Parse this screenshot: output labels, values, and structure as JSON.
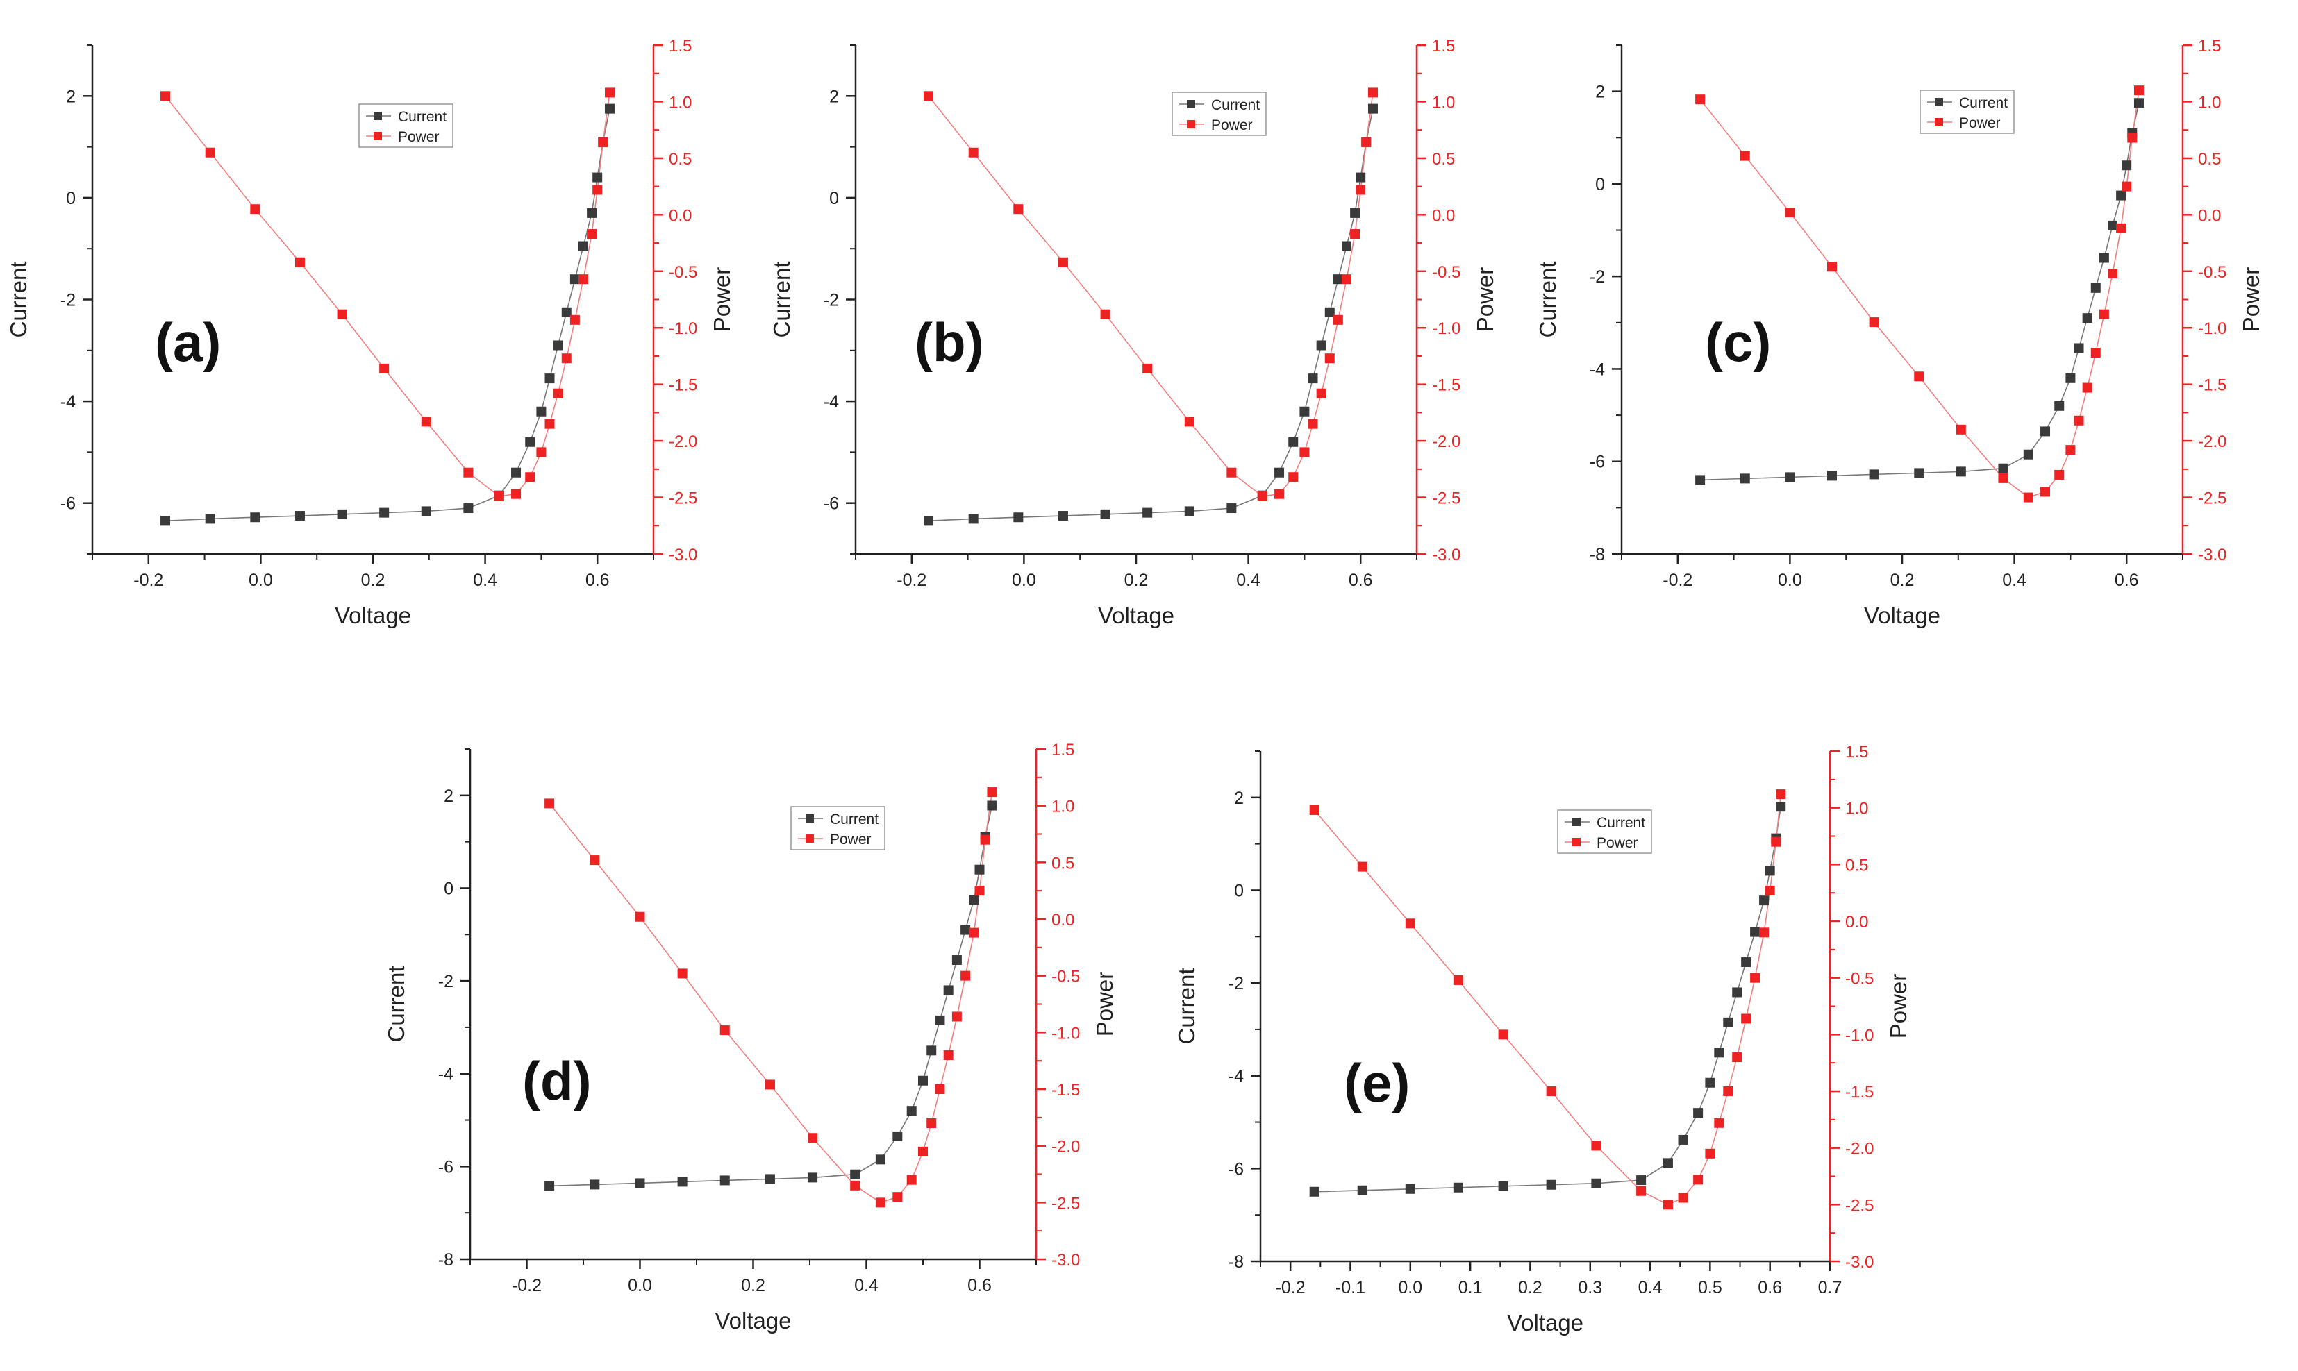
{
  "chart_data": [
    {
      "id": "a",
      "panel_label": "(a)",
      "type": "line",
      "xlabel": "Voltage",
      "ylabel_left": "Current",
      "ylabel_right": "Power",
      "xlim": [
        -0.3,
        0.7
      ],
      "xticks": [
        -0.2,
        0.0,
        0.2,
        0.4,
        0.6
      ],
      "ylim_left": [
        -7,
        3
      ],
      "yticks_left": [
        -6,
        -4,
        -2,
        0,
        2
      ],
      "ylim_right": [
        -3.0,
        1.5
      ],
      "yticks_right": [
        -3.0,
        -2.5,
        -2.0,
        -1.5,
        -1.0,
        -0.5,
        0.0,
        0.5,
        1.0,
        1.5
      ],
      "legend": [
        "Current",
        "Power"
      ],
      "legend_position": "top-right",
      "colors": {
        "current": "#3a3a3a",
        "power": "#ee2222"
      },
      "series": [
        {
          "name": "Current",
          "axis": "left",
          "x": [
            -0.17,
            -0.09,
            -0.01,
            0.07,
            0.145,
            0.22,
            0.295,
            0.37,
            0.425,
            0.455,
            0.48,
            0.5,
            0.515,
            0.53,
            0.545,
            0.56,
            0.575,
            0.59,
            0.6,
            0.61,
            0.622
          ],
          "y": [
            -6.35,
            -6.31,
            -6.28,
            -6.25,
            -6.22,
            -6.19,
            -6.16,
            -6.1,
            -5.85,
            -5.4,
            -4.8,
            -4.2,
            -3.55,
            -2.9,
            -2.25,
            -1.6,
            -0.95,
            -0.3,
            0.4,
            1.1,
            1.75
          ]
        },
        {
          "name": "Power",
          "axis": "right",
          "x": [
            -0.17,
            -0.09,
            -0.01,
            0.07,
            0.145,
            0.22,
            0.295,
            0.37,
            0.425,
            0.455,
            0.48,
            0.5,
            0.515,
            0.53,
            0.545,
            0.56,
            0.575,
            0.59,
            0.6,
            0.61,
            0.622
          ],
          "y": [
            1.05,
            0.55,
            0.05,
            -0.42,
            -0.88,
            -1.36,
            -1.83,
            -2.28,
            -2.49,
            -2.47,
            -2.32,
            -2.1,
            -1.85,
            -1.58,
            -1.27,
            -0.93,
            -0.57,
            -0.17,
            0.22,
            0.64,
            1.08
          ]
        }
      ]
    },
    {
      "id": "b",
      "panel_label": "(b)",
      "type": "line",
      "xlabel": "Voltage",
      "ylabel_left": "Current",
      "ylabel_right": "Power",
      "xlim": [
        -0.3,
        0.7
      ],
      "xticks": [
        -0.2,
        0.0,
        0.2,
        0.4,
        0.6
      ],
      "ylim_left": [
        -7,
        3
      ],
      "yticks_left": [
        -6,
        -4,
        -2,
        0,
        2
      ],
      "ylim_right": [
        -3.0,
        1.5
      ],
      "yticks_right": [
        -3.0,
        -2.5,
        -2.0,
        -1.5,
        -1.0,
        -0.5,
        0.0,
        0.5,
        1.0,
        1.5
      ],
      "legend": [
        "Current",
        "Power"
      ],
      "legend_position": "top-right",
      "colors": {
        "current": "#3a3a3a",
        "power": "#ee2222"
      },
      "series": [
        {
          "name": "Current",
          "axis": "left",
          "x": [
            -0.17,
            -0.09,
            -0.01,
            0.07,
            0.145,
            0.22,
            0.295,
            0.37,
            0.425,
            0.455,
            0.48,
            0.5,
            0.515,
            0.53,
            0.545,
            0.56,
            0.575,
            0.59,
            0.6,
            0.61,
            0.622
          ],
          "y": [
            -6.35,
            -6.31,
            -6.28,
            -6.25,
            -6.22,
            -6.19,
            -6.16,
            -6.1,
            -5.85,
            -5.4,
            -4.8,
            -4.2,
            -3.55,
            -2.9,
            -2.25,
            -1.6,
            -0.95,
            -0.3,
            0.4,
            1.1,
            1.75
          ]
        },
        {
          "name": "Power",
          "axis": "right",
          "x": [
            -0.17,
            -0.09,
            -0.01,
            0.07,
            0.145,
            0.22,
            0.295,
            0.37,
            0.425,
            0.455,
            0.48,
            0.5,
            0.515,
            0.53,
            0.545,
            0.56,
            0.575,
            0.59,
            0.6,
            0.61,
            0.622
          ],
          "y": [
            1.05,
            0.55,
            0.05,
            -0.42,
            -0.88,
            -1.36,
            -1.83,
            -2.28,
            -2.49,
            -2.47,
            -2.32,
            -2.1,
            -1.85,
            -1.58,
            -1.27,
            -0.93,
            -0.57,
            -0.17,
            0.22,
            0.64,
            1.08
          ]
        }
      ]
    },
    {
      "id": "c",
      "panel_label": "(c)",
      "type": "line",
      "xlabel": "Voltage",
      "ylabel_left": "Current",
      "ylabel_right": "Power",
      "xlim": [
        -0.3,
        0.7
      ],
      "xticks": [
        -0.2,
        0.0,
        0.2,
        0.4,
        0.6
      ],
      "ylim_left": [
        -8,
        3
      ],
      "yticks_left": [
        -8,
        -6,
        -4,
        -2,
        0,
        2
      ],
      "ylim_right": [
        -3.0,
        1.5
      ],
      "yticks_right": [
        -3.0,
        -2.5,
        -2.0,
        -1.5,
        -1.0,
        -0.5,
        0.0,
        0.5,
        1.0,
        1.5
      ],
      "legend": [
        "Current",
        "Power"
      ],
      "legend_position": "top-right",
      "colors": {
        "current": "#3a3a3a",
        "power": "#ee2222"
      },
      "series": [
        {
          "name": "Current",
          "axis": "left",
          "x": [
            -0.16,
            -0.08,
            0.0,
            0.075,
            0.15,
            0.23,
            0.305,
            0.38,
            0.425,
            0.455,
            0.48,
            0.5,
            0.515,
            0.53,
            0.545,
            0.56,
            0.575,
            0.59,
            0.6,
            0.61,
            0.622
          ],
          "y": [
            -6.4,
            -6.37,
            -6.34,
            -6.31,
            -6.28,
            -6.25,
            -6.22,
            -6.15,
            -5.85,
            -5.35,
            -4.8,
            -4.2,
            -3.55,
            -2.9,
            -2.25,
            -1.6,
            -0.9,
            -0.25,
            0.4,
            1.1,
            1.75
          ]
        },
        {
          "name": "Power",
          "axis": "right",
          "x": [
            -0.16,
            -0.08,
            0.0,
            0.075,
            0.15,
            0.23,
            0.305,
            0.38,
            0.425,
            0.455,
            0.48,
            0.5,
            0.515,
            0.53,
            0.545,
            0.56,
            0.575,
            0.59,
            0.6,
            0.61,
            0.622
          ],
          "y": [
            1.02,
            0.52,
            0.02,
            -0.46,
            -0.95,
            -1.43,
            -1.9,
            -2.33,
            -2.5,
            -2.45,
            -2.3,
            -2.08,
            -1.82,
            -1.53,
            -1.22,
            -0.88,
            -0.52,
            -0.12,
            0.25,
            0.68,
            1.1
          ]
        }
      ]
    },
    {
      "id": "d",
      "panel_label": "(d)",
      "type": "line",
      "xlabel": "Voltage",
      "ylabel_left": "Current",
      "ylabel_right": "Power",
      "xlim": [
        -0.3,
        0.7
      ],
      "xticks": [
        -0.2,
        0.0,
        0.2,
        0.4,
        0.6
      ],
      "ylim_left": [
        -8,
        3
      ],
      "yticks_left": [
        -8,
        -6,
        -4,
        -2,
        0,
        2
      ],
      "ylim_right": [
        -3.0,
        1.5
      ],
      "yticks_right": [
        -3.0,
        -2.5,
        -2.0,
        -1.5,
        -1.0,
        -0.5,
        0.0,
        0.5,
        1.0,
        1.5
      ],
      "legend": [
        "Current",
        "Power"
      ],
      "legend_position": "top-right",
      "colors": {
        "current": "#3a3a3a",
        "power": "#ee2222"
      },
      "series": [
        {
          "name": "Current",
          "axis": "left",
          "x": [
            -0.16,
            -0.08,
            0.0,
            0.075,
            0.15,
            0.23,
            0.305,
            0.38,
            0.425,
            0.455,
            0.48,
            0.5,
            0.515,
            0.53,
            0.545,
            0.56,
            0.575,
            0.59,
            0.6,
            0.61,
            0.622
          ],
          "y": [
            -6.42,
            -6.39,
            -6.36,
            -6.33,
            -6.3,
            -6.27,
            -6.24,
            -6.17,
            -5.85,
            -5.35,
            -4.8,
            -4.15,
            -3.5,
            -2.85,
            -2.2,
            -1.55,
            -0.9,
            -0.25,
            0.4,
            1.1,
            1.78
          ]
        },
        {
          "name": "Power",
          "axis": "right",
          "x": [
            -0.16,
            -0.08,
            0.0,
            0.075,
            0.15,
            0.23,
            0.305,
            0.38,
            0.425,
            0.455,
            0.48,
            0.5,
            0.515,
            0.53,
            0.545,
            0.56,
            0.575,
            0.59,
            0.6,
            0.61,
            0.622
          ],
          "y": [
            1.02,
            0.52,
            0.02,
            -0.48,
            -0.98,
            -1.46,
            -1.93,
            -2.35,
            -2.5,
            -2.45,
            -2.3,
            -2.05,
            -1.8,
            -1.5,
            -1.2,
            -0.86,
            -0.5,
            -0.12,
            0.25,
            0.7,
            1.12
          ]
        }
      ]
    },
    {
      "id": "e",
      "panel_label": "(e)",
      "type": "line",
      "xlabel": "Voltage",
      "ylabel_left": "Current",
      "ylabel_right": "Power",
      "xlim": [
        -0.25,
        0.7
      ],
      "xticks": [
        -0.2,
        -0.1,
        0.0,
        0.1,
        0.2,
        0.3,
        0.4,
        0.5,
        0.6,
        0.7
      ],
      "ylim_left": [
        -8,
        3
      ],
      "yticks_left": [
        -8,
        -6,
        -4,
        -2,
        0,
        2
      ],
      "ylim_right": [
        -3.0,
        1.5
      ],
      "yticks_right": [
        -3.0,
        -2.5,
        -2.0,
        -1.5,
        -1.0,
        -0.5,
        0.0,
        0.5,
        1.0,
        1.5
      ],
      "legend": [
        "Current",
        "Power"
      ],
      "legend_position": "top-right",
      "colors": {
        "current": "#3a3a3a",
        "power": "#ee2222"
      },
      "series": [
        {
          "name": "Current",
          "axis": "left",
          "x": [
            -0.16,
            -0.08,
            0.0,
            0.08,
            0.155,
            0.235,
            0.31,
            0.385,
            0.43,
            0.455,
            0.48,
            0.5,
            0.515,
            0.53,
            0.545,
            0.56,
            0.575,
            0.59,
            0.6,
            0.61,
            0.618
          ],
          "y": [
            -6.5,
            -6.47,
            -6.44,
            -6.41,
            -6.38,
            -6.35,
            -6.32,
            -6.25,
            -5.88,
            -5.38,
            -4.8,
            -4.15,
            -3.5,
            -2.85,
            -2.2,
            -1.55,
            -0.9,
            -0.22,
            0.42,
            1.12,
            1.8
          ]
        },
        {
          "name": "Power",
          "axis": "right",
          "x": [
            -0.16,
            -0.08,
            0.0,
            0.08,
            0.155,
            0.235,
            0.31,
            0.385,
            0.43,
            0.455,
            0.48,
            0.5,
            0.515,
            0.53,
            0.545,
            0.56,
            0.575,
            0.59,
            0.6,
            0.61,
            0.618
          ],
          "y": [
            0.98,
            0.48,
            -0.02,
            -0.52,
            -1.0,
            -1.5,
            -1.98,
            -2.38,
            -2.5,
            -2.44,
            -2.28,
            -2.05,
            -1.78,
            -1.5,
            -1.2,
            -0.86,
            -0.5,
            -0.1,
            0.27,
            0.7,
            1.12
          ]
        }
      ]
    }
  ]
}
